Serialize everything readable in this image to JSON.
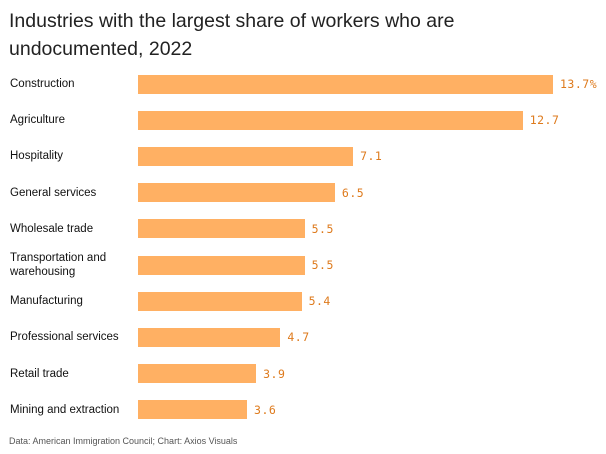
{
  "chart_data": {
    "type": "hbar",
    "title": "Industries with the largest share of workers who are undocumented, 2022",
    "categories": [
      "Construction",
      "Agriculture",
      "Hospitality",
      "General services",
      "Wholesale trade",
      "Transportation and warehousing",
      "Manufacturing",
      "Professional services",
      "Retail trade",
      "Mining and extraction"
    ],
    "values": [
      13.7,
      12.7,
      7.1,
      6.5,
      5.5,
      5.5,
      5.4,
      4.7,
      3.9,
      3.6
    ],
    "value_labels": [
      "13.7%",
      "12.7",
      "7.1",
      "6.5",
      "5.5",
      "5.5",
      "5.4",
      "4.7",
      "3.9",
      "3.6"
    ],
    "color": "#ffb063",
    "label_color": "#de7a1c",
    "source": "Data: American Immigration Council; Chart: Axios Visuals"
  }
}
